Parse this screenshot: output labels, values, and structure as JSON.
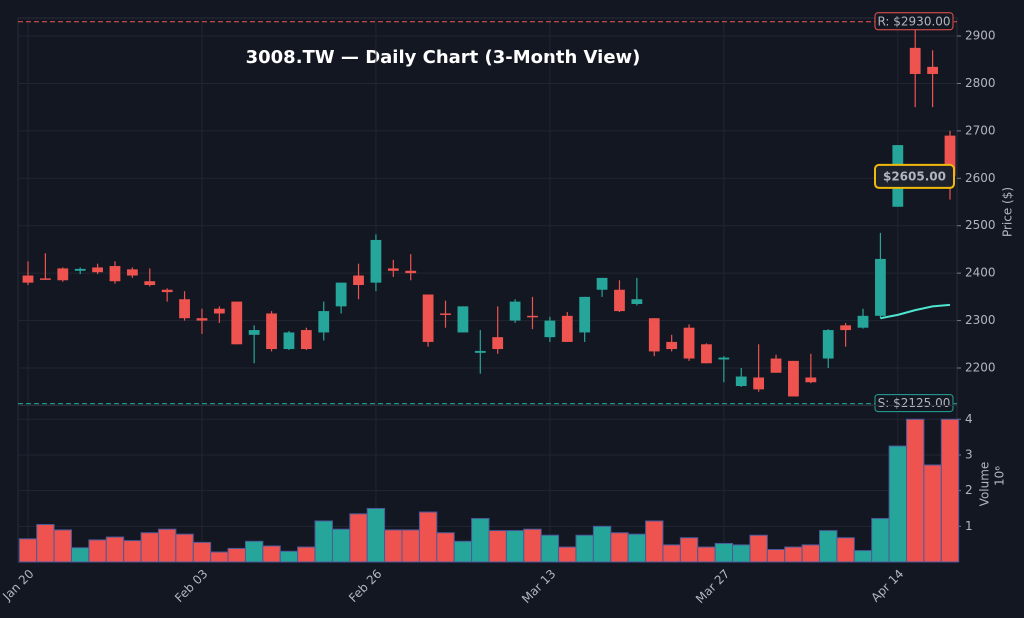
{
  "chart_data": {
    "type": "candlestick",
    "title": "3008.TW — Daily Chart (3-Month View)",
    "categories": [
      "Jan 20",
      null,
      null,
      null,
      null,
      null,
      null,
      null,
      null,
      null,
      "Feb 03",
      null,
      null,
      null,
      null,
      null,
      null,
      null,
      null,
      null,
      "Feb 26",
      null,
      null,
      null,
      null,
      null,
      null,
      null,
      null,
      null,
      "Mar 13",
      null,
      null,
      null,
      null,
      null,
      null,
      null,
      null,
      null,
      "Mar 27",
      null,
      null,
      null,
      null,
      null,
      null,
      null,
      null,
      null,
      "Apr 14",
      null,
      null,
      null
    ],
    "open": [
      2395,
      2389,
      2410,
      2405,
      2412,
      2415,
      2408,
      2383,
      2365,
      2345,
      2305,
      2325,
      2340,
      2270,
      2315,
      2240,
      2280,
      2275,
      2330,
      2395,
      2380,
      2410,
      2405,
      2355,
      2315,
      2275,
      2232,
      2265,
      2300,
      2310,
      2265,
      2310,
      2275,
      2365,
      2365,
      2335,
      2305,
      2255,
      2285,
      2250,
      2218,
      2162,
      2180,
      2220,
      2215,
      2180,
      2220,
      2290,
      2285,
      2310,
      2540,
      2875,
      2835,
      2690
    ],
    "high": [
      2425,
      2442,
      2412,
      2412,
      2420,
      2425,
      2412,
      2410,
      2368,
      2362,
      2325,
      2330,
      2340,
      2290,
      2320,
      2278,
      2285,
      2340,
      2380,
      2420,
      2482,
      2428,
      2440,
      2355,
      2342,
      2330,
      2280,
      2330,
      2345,
      2350,
      2308,
      2318,
      2350,
      2390,
      2385,
      2390,
      2305,
      2270,
      2292,
      2252,
      2225,
      2200,
      2250,
      2228,
      2215,
      2230,
      2282,
      2295,
      2325,
      2485,
      2670,
      2935,
      2870,
      2700
    ],
    "low": [
      2375,
      2386,
      2382,
      2398,
      2398,
      2378,
      2390,
      2372,
      2340,
      2300,
      2272,
      2295,
      2250,
      2210,
      2235,
      2238,
      2238,
      2258,
      2315,
      2345,
      2362,
      2392,
      2385,
      2245,
      2285,
      2275,
      2188,
      2230,
      2295,
      2282,
      2255,
      2255,
      2255,
      2350,
      2318,
      2332,
      2225,
      2235,
      2215,
      2210,
      2170,
      2160,
      2150,
      2190,
      2140,
      2168,
      2200,
      2245,
      2283,
      2305,
      2540,
      2750,
      2750,
      2555
    ],
    "close": [
      2380,
      2388,
      2385,
      2409,
      2402,
      2383,
      2395,
      2375,
      2360,
      2305,
      2300,
      2315,
      2250,
      2280,
      2240,
      2275,
      2240,
      2320,
      2380,
      2375,
      2470,
      2405,
      2400,
      2255,
      2312,
      2330,
      2236,
      2240,
      2340,
      2307,
      2300,
      2255,
      2350,
      2390,
      2320,
      2345,
      2235,
      2240,
      2220,
      2210,
      2222,
      2182,
      2155,
      2190,
      2140,
      2170,
      2280,
      2280,
      2310,
      2430,
      2670,
      2820,
      2820,
      2605
    ],
    "moving_average": [
      null,
      null,
      null,
      null,
      null,
      null,
      null,
      null,
      null,
      null,
      null,
      null,
      null,
      null,
      null,
      null,
      null,
      null,
      null,
      null,
      null,
      null,
      null,
      null,
      null,
      null,
      null,
      null,
      null,
      null,
      null,
      null,
      null,
      null,
      null,
      null,
      null,
      null,
      null,
      null,
      null,
      null,
      null,
      null,
      null,
      null,
      null,
      null,
      null,
      2305,
      2312,
      2322,
      2330,
      2333
    ],
    "volume": [
      0.65,
      1.05,
      0.9,
      0.4,
      0.62,
      0.7,
      0.6,
      0.82,
      0.92,
      0.78,
      0.55,
      0.28,
      0.38,
      0.58,
      0.45,
      0.3,
      0.42,
      1.15,
      0.92,
      1.35,
      1.5,
      0.9,
      0.9,
      1.4,
      0.82,
      0.58,
      1.22,
      0.88,
      0.88,
      0.92,
      0.75,
      0.42,
      0.75,
      1.0,
      0.82,
      0.78,
      1.15,
      0.48,
      0.68,
      0.42,
      0.52,
      0.48,
      0.75,
      0.35,
      0.42,
      0.48,
      0.88,
      0.68,
      0.32,
      1.22,
      3.25,
      4.0,
      2.72,
      4.0
    ],
    "up_color": "#26a69a",
    "down_color": "#ef5350",
    "ma_color": "#4ee6d0",
    "ylabel": "Price ($)",
    "ylim": [
      2122,
      2938
    ],
    "yticks": [
      2200,
      2300,
      2400,
      2500,
      2600,
      2700,
      2800,
      2900
    ],
    "volume_label": "Volume",
    "volume_offset_label": "10⁶",
    "volume_ylim": [
      0,
      4.4
    ],
    "volume_yticks": [
      1,
      2,
      3,
      4
    ],
    "grid": true,
    "annotations": [
      {
        "text": "R: $2930.00",
        "value": 2930,
        "color": "#ef5350"
      },
      {
        "text": "S: $2125.00",
        "value": 2125,
        "color": "#26a69a"
      },
      {
        "text": "$2605.00",
        "value": 2605,
        "color": "#f0b90b"
      }
    ]
  }
}
